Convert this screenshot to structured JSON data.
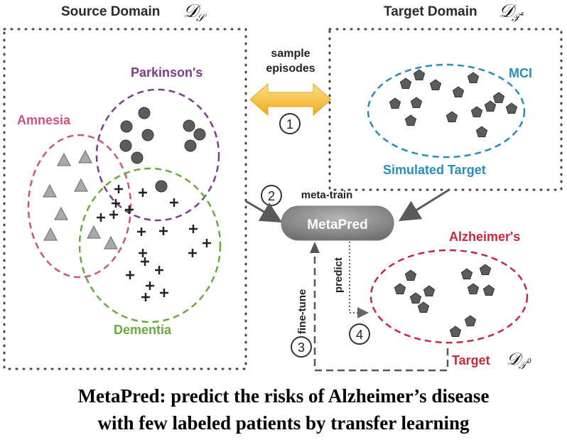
{
  "source_domain": {
    "title": "Source Domain",
    "symbol": "𝒟",
    "subscript": "𝒮"
  },
  "target_domain": {
    "title": "Target Domain",
    "symbol": "𝒟",
    "subscript": "𝒯",
    "superscript": "s"
  },
  "sample_label_line1": "sample",
  "sample_label_line2": "episodes",
  "step_numbers": [
    "1",
    "2",
    "3",
    "4"
  ],
  "meta_train_label": "meta-train",
  "metapred_label": "MetaPred",
  "fine_tune_label": "fine-tune",
  "predict_label": "predict",
  "clusters": {
    "parkinsons": "Parkinson's",
    "amnesia": "Amnesia",
    "dementia": "Dementia",
    "mci": "MCI",
    "simulated_target": "Simulated Target",
    "alzheimers": "Alzheimer's",
    "target": "Target"
  },
  "target_symbol": {
    "symbol": "𝒟",
    "subscript": "𝒯",
    "superscript": "0"
  },
  "caption_line1": "MetaPred: predict the risks of Alzheimer’s disease",
  "caption_line2": "with few labeled patients by transfer learning",
  "colors": {
    "parkinsons": "#7d3c8c",
    "amnesia": "#d0527a",
    "dementia": "#6aaa3a",
    "mci": "#2a8bbd",
    "alzheimers": "#c8283c",
    "arrow_gold": "#f5b935",
    "metapred_fill": "#8e8e8e"
  }
}
